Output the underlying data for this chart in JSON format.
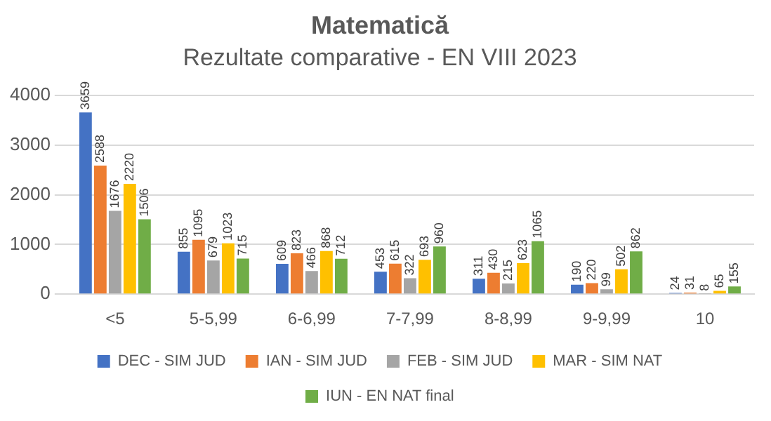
{
  "chart_data": {
    "type": "bar",
    "title": "Matematică",
    "subtitle": "Rezultate comparative - EN VIII 2023",
    "categories": [
      "<5",
      "5-5,99",
      "6-6,99",
      "7-7,99",
      "8-8,99",
      "9-9,99",
      "10"
    ],
    "series": [
      {
        "name": "DEC - SIM JUD",
        "color": "#4472c4",
        "values": [
          3659,
          855,
          609,
          453,
          311,
          190,
          24
        ]
      },
      {
        "name": "IAN - SIM JUD",
        "color": "#ed7d31",
        "values": [
          2588,
          1095,
          823,
          615,
          430,
          220,
          31
        ]
      },
      {
        "name": "FEB - SIM JUD",
        "color": "#a5a5a5",
        "values": [
          1676,
          679,
          466,
          322,
          215,
          99,
          8
        ]
      },
      {
        "name": "MAR - SIM NAT",
        "color": "#ffc000",
        "values": [
          2220,
          1023,
          868,
          693,
          623,
          502,
          65
        ]
      },
      {
        "name": "IUN - EN NAT final",
        "color": "#70ad47",
        "values": [
          1506,
          715,
          712,
          960,
          1065,
          862,
          155
        ]
      }
    ],
    "ylim": [
      0,
      4000
    ],
    "yticks": [
      0,
      1000,
      2000,
      3000,
      4000
    ],
    "grid": "y",
    "legend": "bottom",
    "data_labels": true
  }
}
